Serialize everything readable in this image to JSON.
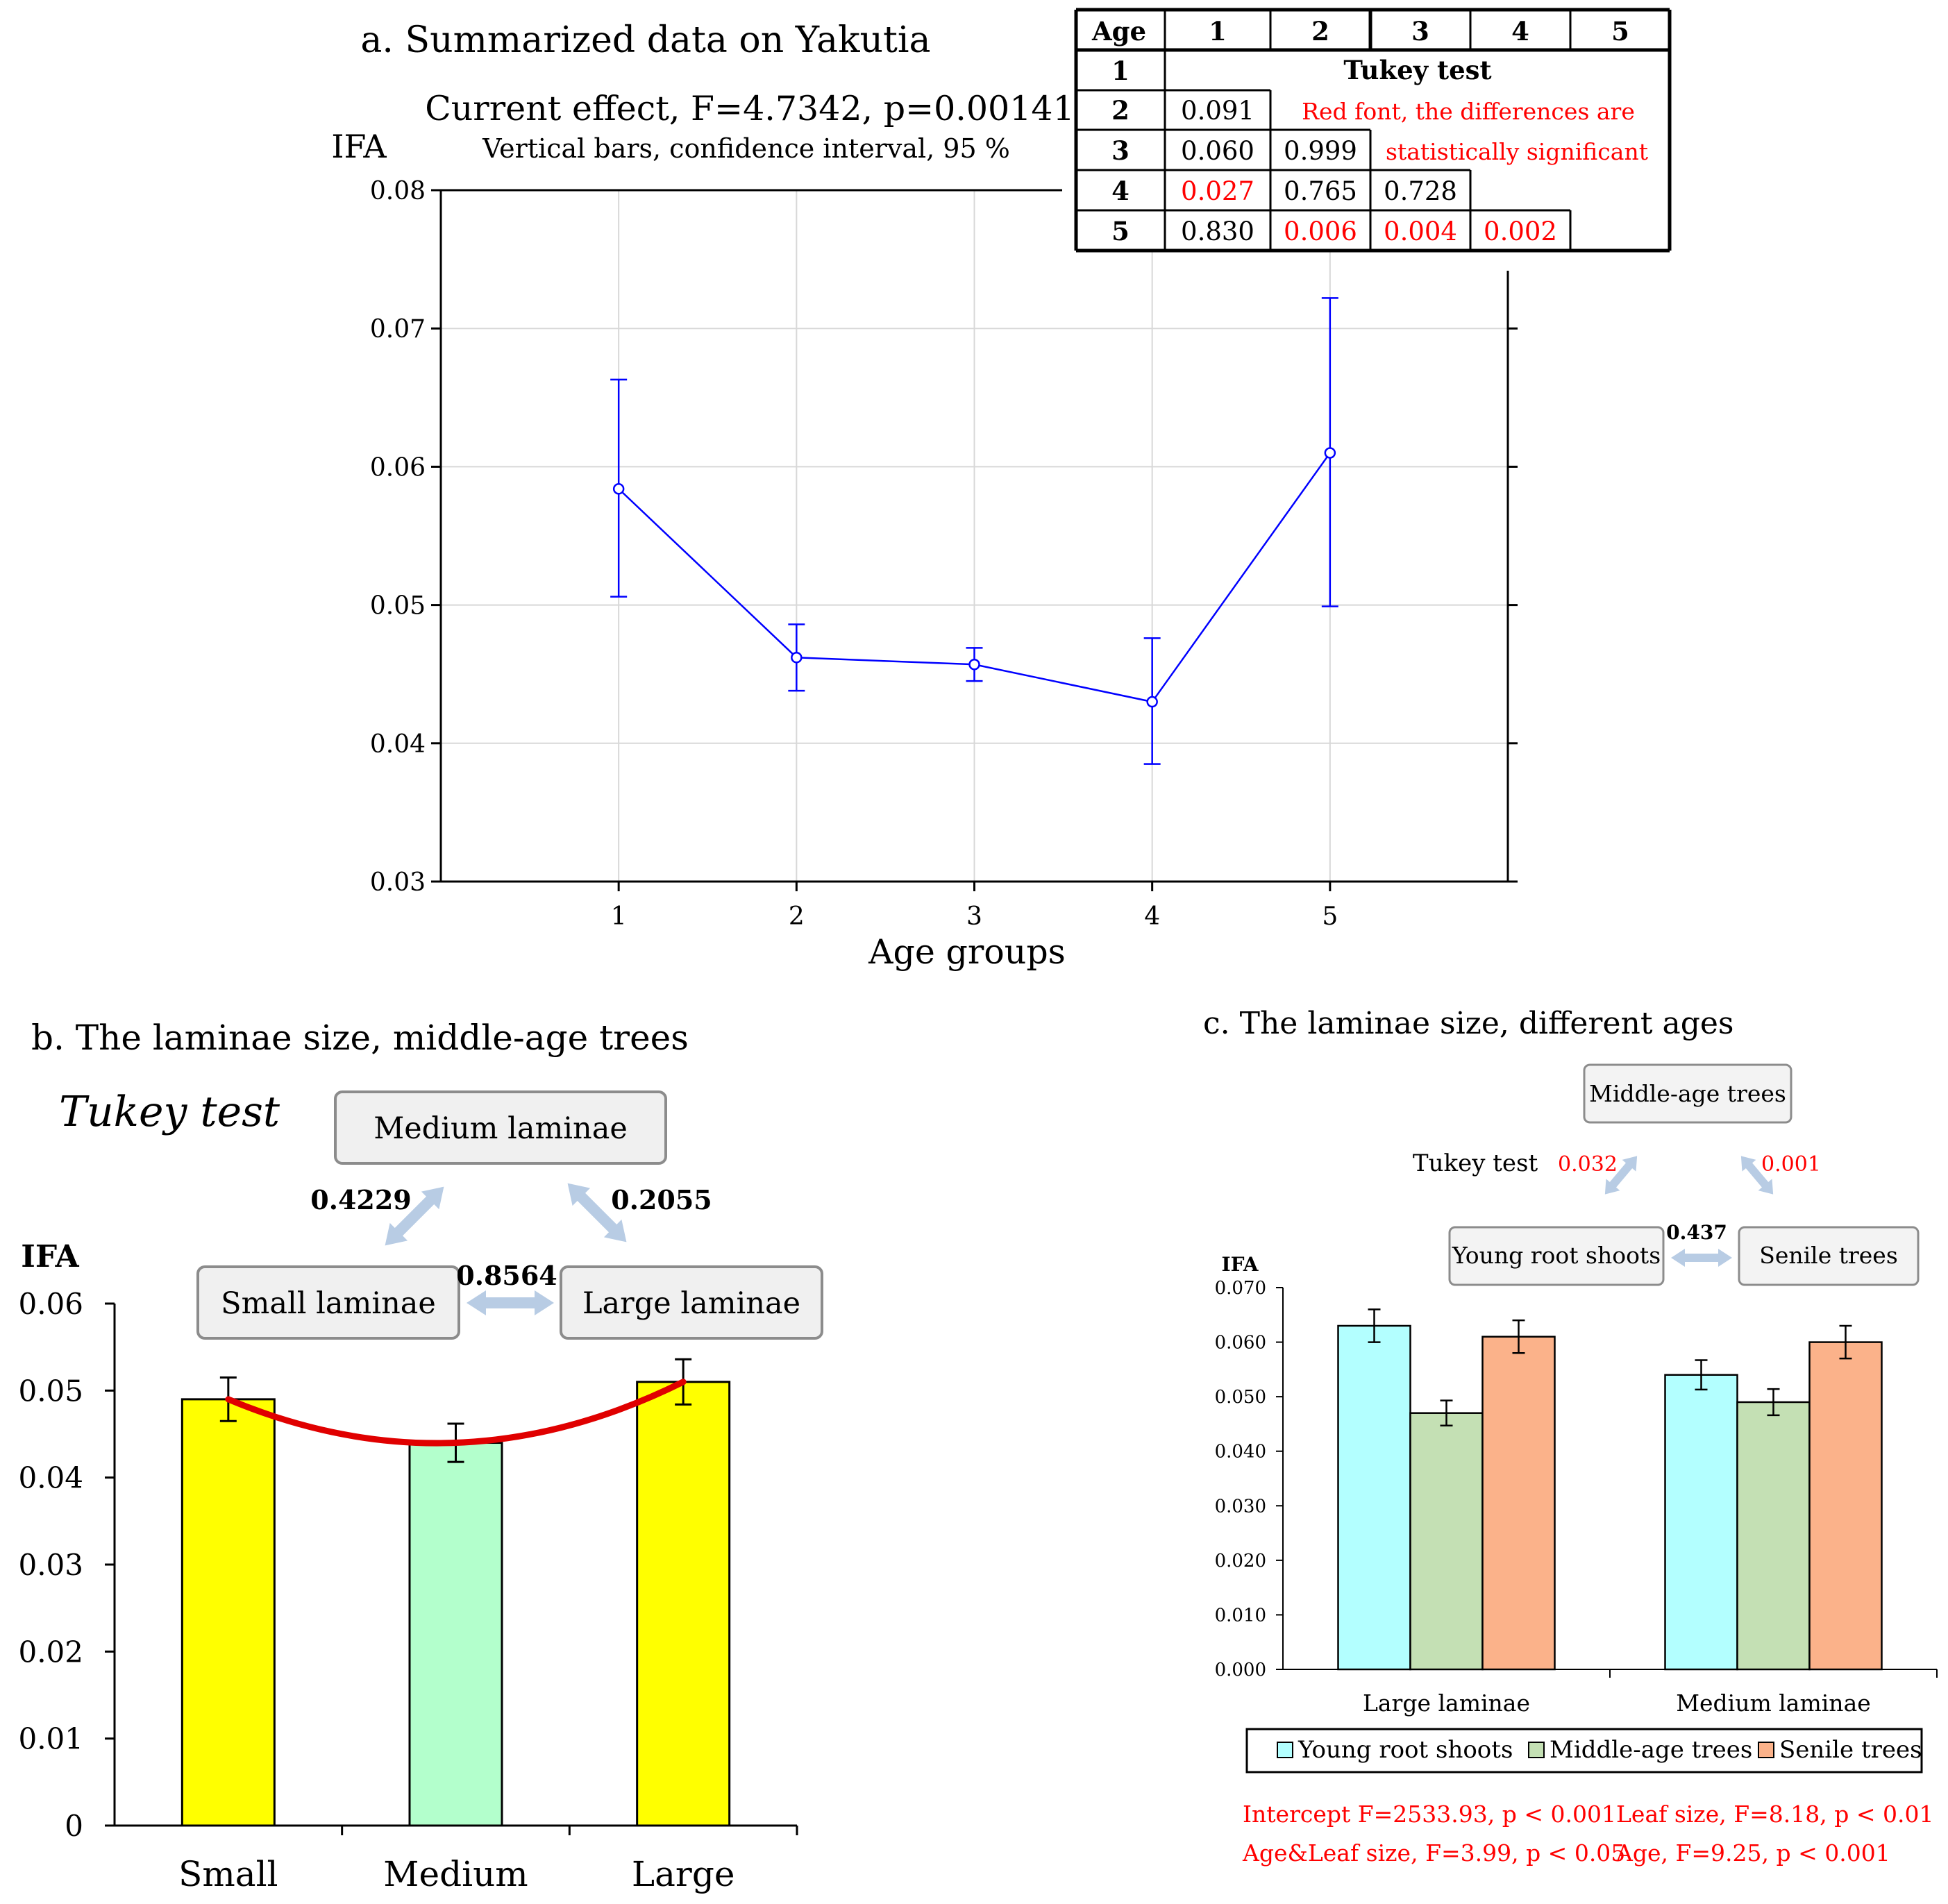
{
  "panel_a": {
    "title": "a. Summarized data on Yakutia",
    "subtitle": "Current effect, F=4.7342, p=0.00141",
    "note": "Vertical bars, confidence interval, 95 %",
    "colors": {
      "series": "#0000ff"
    },
    "tukey_table": {
      "header": [
        "Age",
        "1",
        "2",
        "3",
        "4",
        "5"
      ],
      "title": "Tukey test",
      "note_line1": "Red font, the differences are",
      "note_line2": "statistically significant",
      "rows": [
        {
          "age": "1",
          "cells": []
        },
        {
          "age": "2",
          "cells": [
            {
              "v": "0.091",
              "sig": false
            }
          ]
        },
        {
          "age": "3",
          "cells": [
            {
              "v": "0.060",
              "sig": false
            },
            {
              "v": "0.999",
              "sig": false
            }
          ]
        },
        {
          "age": "4",
          "cells": [
            {
              "v": "0.027",
              "sig": true
            },
            {
              "v": "0.765",
              "sig": false
            },
            {
              "v": "0.728",
              "sig": false
            }
          ]
        },
        {
          "age": "5",
          "cells": [
            {
              "v": "0.830",
              "sig": false
            },
            {
              "v": "0.006",
              "sig": true
            },
            {
              "v": "0.004",
              "sig": true
            },
            {
              "v": "0.002",
              "sig": true
            }
          ]
        }
      ]
    }
  },
  "panel_b": {
    "title": "b. The laminae size, middle-age trees",
    "tukey_label": "Tukey test",
    "boxes": {
      "medium": "Medium laminae",
      "small": "Small laminae",
      "large": "Large laminae"
    },
    "p_values": {
      "small_medium": "0.4229",
      "medium_large": "0.2055",
      "small_large": "0.8564"
    }
  },
  "panel_c": {
    "title": "c. The laminae size, different ages",
    "tukey_label": "Tukey test",
    "boxes": {
      "middle": "Middle-age trees",
      "young": "Young root shoots",
      "senile": "Senile trees"
    },
    "p_values": {
      "young_middle": "0.032",
      "middle_senile": "0.001",
      "young_senile": "0.437"
    },
    "stats": {
      "intercept": "Intercept F=2533.93, p < 0.001",
      "leaf": "Leaf size, F=8.18, p < 0.01",
      "interaction": "Age&Leaf size, F=3.99, p < 0.05",
      "age": "Age, F=9.25, p < 0.001"
    }
  },
  "chart_data": [
    {
      "type": "line",
      "title": "a. Summarized data on Yakutia",
      "xlabel": "Age groups",
      "ylabel": "IFA",
      "x": [
        1,
        2,
        3,
        4,
        5
      ],
      "y": [
        0.0584,
        0.0462,
        0.0457,
        0.043,
        0.061
      ],
      "ci_low": [
        0.0506,
        0.0438,
        0.0445,
        0.0385,
        0.0499
      ],
      "ci_high": [
        0.0663,
        0.0486,
        0.0469,
        0.0476,
        0.0722
      ],
      "xlim": [
        0,
        6
      ],
      "ylim": [
        0.03,
        0.08
      ],
      "yticks": [
        "0.03",
        "0.04",
        "0.05",
        "0.06",
        "0.07",
        "0.08"
      ],
      "xticks": [
        "1",
        "2",
        "3",
        "4",
        "5"
      ],
      "grid": true
    },
    {
      "type": "bar",
      "title": "b. The laminae size, middle-age trees",
      "ylabel": "IFA",
      "categories": [
        "Small",
        "Medium",
        "Large"
      ],
      "values": [
        0.049,
        0.044,
        0.051
      ],
      "errors": [
        0.0025,
        0.0022,
        0.0026
      ],
      "colors": [
        "#ffff00",
        "#b3ffcc",
        "#ffff00"
      ],
      "trend_color": "#e00000",
      "ylim": [
        0,
        0.06
      ],
      "yticks": [
        "0",
        "0.01",
        "0.02",
        "0.03",
        "0.04",
        "0.05",
        "0.06"
      ]
    },
    {
      "type": "bar",
      "title": "c. The laminae size, different ages",
      "ylabel": "IFA",
      "categories": [
        "Large laminae",
        "Medium laminae"
      ],
      "series": [
        {
          "name": "Young root shoots",
          "values": [
            0.063,
            0.054
          ],
          "errors": [
            0.003,
            0.0027
          ],
          "color": "#b3ffff"
        },
        {
          "name": "Middle-age trees",
          "values": [
            0.047,
            0.049
          ],
          "errors": [
            0.0023,
            0.0024
          ],
          "color": "#c4e0b4"
        },
        {
          "name": "Senile trees",
          "values": [
            0.061,
            0.06
          ],
          "errors": [
            0.003,
            0.003
          ],
          "color": "#fbb28a"
        }
      ],
      "ylim": [
        0,
        0.07
      ],
      "yticks": [
        "0.000",
        "0.010",
        "0.020",
        "0.030",
        "0.040",
        "0.050",
        "0.060",
        "0.070"
      ],
      "legend": "bottom"
    }
  ]
}
